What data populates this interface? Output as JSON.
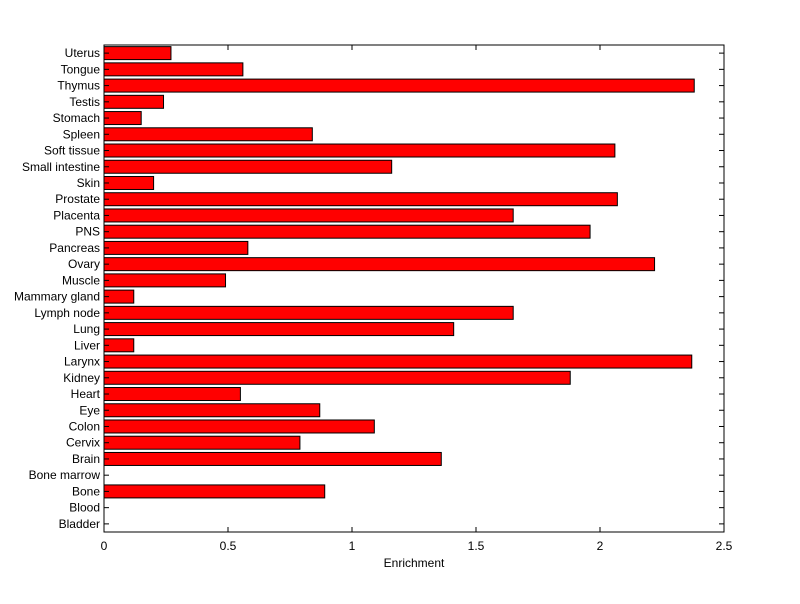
{
  "chart_data": {
    "type": "bar",
    "orientation": "horizontal",
    "title": "",
    "xlabel": "Enrichment",
    "ylabel": "",
    "xlim": [
      0,
      2.5
    ],
    "xticks": [
      0,
      0.5,
      1,
      1.5,
      2,
      2.5
    ],
    "xtick_labels": [
      "0",
      "0.5",
      "1",
      "1.5",
      "2",
      "2.5"
    ],
    "grid": false,
    "legend": "none",
    "bar_color": "#ff0000",
    "edge_color": "#000000",
    "categories": [
      "Uterus",
      "Tongue",
      "Thymus",
      "Testis",
      "Stomach",
      "Spleen",
      "Soft tissue",
      "Small intestine",
      "Skin",
      "Prostate",
      "Placenta",
      "PNS",
      "Pancreas",
      "Ovary",
      "Muscle",
      "Mammary gland",
      "Lymph node",
      "Lung",
      "Liver",
      "Larynx",
      "Kidney",
      "Heart",
      "Eye",
      "Colon",
      "Cervix",
      "Brain",
      "Bone marrow",
      "Bone",
      "Blood",
      "Bladder"
    ],
    "values": [
      0.27,
      0.56,
      2.38,
      0.24,
      0.15,
      0.84,
      2.06,
      1.16,
      0.2,
      2.07,
      1.65,
      1.96,
      0.58,
      2.22,
      0.49,
      0.12,
      1.65,
      1.41,
      0.12,
      2.37,
      1.88,
      0.55,
      0.87,
      1.09,
      0.79,
      1.36,
      0,
      0.89,
      0,
      0
    ]
  }
}
